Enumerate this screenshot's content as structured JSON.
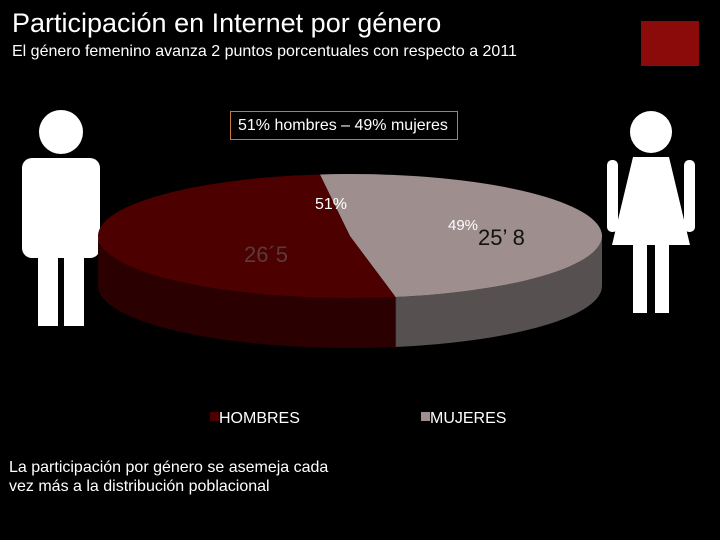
{
  "slide": {
    "title": "Participación en Internet por género",
    "subtitle": "El género femenino avanza 2 puntos porcentuales con respecto a 2011",
    "highlight": "51% hombres – 49% mujeres",
    "footnote": "La participación por género se asemeja cada vez más a la distribución poblacional"
  },
  "colors": {
    "background": "#000000",
    "hombres": "#4d0000",
    "mujeres": "#9e8e8e",
    "accent": "#8b0a0a"
  },
  "icons": [
    "man-icon",
    "woman-icon"
  ],
  "chart_data": {
    "type": "pie",
    "style": "3d",
    "categories": [
      "HOMBRES",
      "MUJERES"
    ],
    "values": [
      51,
      49
    ],
    "data_labels": [
      "51%",
      "49%"
    ],
    "annotations": [
      "26´5",
      "25’ 8"
    ],
    "legend": {
      "placement": "bottom",
      "entries": [
        "HOMBRES",
        "MUJERES"
      ]
    }
  }
}
